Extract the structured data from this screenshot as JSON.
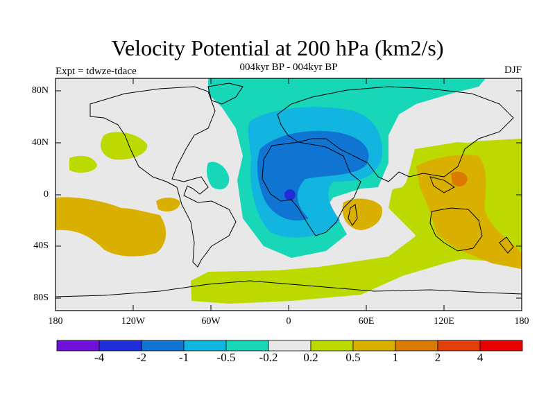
{
  "title": "Velocity Potential at 200 hPa (km2/s)",
  "subtitle": "004kyr BP - 004kyr BP",
  "left_label": "Expt = tdwze-tdace",
  "right_label": "DJF",
  "lat_ticks": [
    "80N",
    "40N",
    "0",
    "40S",
    "80S"
  ],
  "lon_ticks": [
    "180",
    "120W",
    "60W",
    "0",
    "60E",
    "120E",
    "180"
  ],
  "colorbar": {
    "labels": [
      "-4",
      "-2",
      "-1",
      "-0.5",
      "-0.2",
      "0.2",
      "0.5",
      "1",
      "2",
      "4"
    ],
    "colors": [
      "#7010d8",
      "#1f2ed8",
      "#0f74d2",
      "#12b4e0",
      "#18d6b8",
      "#e8e8e8",
      "#bcd900",
      "#dab000",
      "#da7a00",
      "#e04008",
      "#e80000"
    ]
  }
}
